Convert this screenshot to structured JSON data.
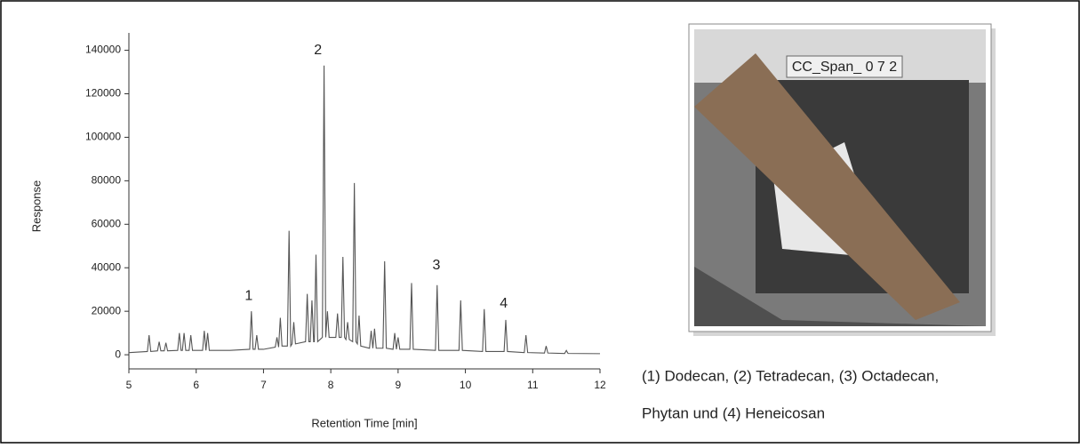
{
  "chart_data": {
    "type": "line",
    "x_label": "Retention Time [min]",
    "y_label": "Response",
    "color": "#555555",
    "xlim": [
      5,
      12
    ],
    "xticks": [
      5,
      6,
      7,
      8,
      9,
      10,
      11,
      12
    ],
    "ylim": [
      -6500,
      148000
    ],
    "yticks": [
      0,
      20000,
      40000,
      60000,
      80000,
      100000,
      120000,
      140000
    ],
    "x": [
      5.0,
      5.275,
      5.3,
      5.325,
      5.425,
      5.45,
      5.475,
      5.525,
      5.55,
      5.575,
      5.725,
      5.75,
      5.775,
      5.795,
      5.82,
      5.845,
      5.895,
      5.92,
      5.945,
      6.095,
      6.12,
      6.145,
      6.17,
      6.195,
      6.5,
      6.795,
      6.82,
      6.845,
      6.875,
      6.9,
      6.925,
      7.0,
      7.175,
      7.2,
      7.225,
      7.25,
      7.275,
      7.355,
      7.38,
      7.405,
      7.425,
      7.45,
      7.475,
      7.625,
      7.65,
      7.675,
      7.695,
      7.72,
      7.745,
      7.755,
      7.78,
      7.805,
      7.875,
      7.9,
      7.925,
      7.95,
      7.975,
      8.075,
      8.1,
      8.125,
      8.155,
      8.18,
      8.205,
      8.225,
      8.25,
      8.275,
      8.325,
      8.35,
      8.375,
      8.395,
      8.42,
      8.445,
      8.575,
      8.6,
      8.625,
      8.65,
      8.675,
      8.775,
      8.8,
      8.825,
      8.925,
      8.95,
      8.975,
      9.0,
      9.025,
      9.175,
      9.2,
      9.225,
      9.555,
      9.58,
      9.605,
      9.905,
      9.93,
      9.955,
      10.255,
      10.28,
      10.305,
      10.575,
      10.6,
      10.625,
      10.875,
      10.9,
      10.925,
      11.175,
      11.2,
      11.225,
      11.475,
      11.5,
      11.525,
      12.0
    ],
    "values": [
      1000,
      1500,
      9000,
      1500,
      1800,
      6000,
      1800,
      1800,
      5500,
      1800,
      2000,
      10000,
      2000,
      2000,
      10000,
      2000,
      2000,
      9000,
      2000,
      2000,
      11000,
      2000,
      10000,
      2000,
      2000,
      2500,
      20000,
      2500,
      2500,
      9000,
      2500,
      2500,
      3500,
      8000,
      3500,
      17000,
      4000,
      4000,
      57000,
      4000,
      5000,
      15000,
      5000,
      6000,
      28000,
      6000,
      6000,
      25000,
      6000,
      6000,
      46000,
      6000,
      8000,
      133000,
      8000,
      20000,
      8000,
      8000,
      19000,
      8000,
      8000,
      45000,
      8000,
      7000,
      15000,
      7000,
      6000,
      79000,
      6000,
      5000,
      18000,
      4000,
      3000,
      11000,
      3000,
      12000,
      3000,
      3000,
      43000,
      3000,
      2500,
      10000,
      2500,
      8000,
      2500,
      2500,
      33000,
      2500,
      2000,
      32000,
      2000,
      2000,
      25000,
      2000,
      1500,
      21000,
      1500,
      1500,
      16000,
      1500,
      1000,
      9000,
      1000,
      800,
      4000,
      800,
      600,
      2000,
      600,
      500
    ],
    "annotations": [
      {
        "label": "1",
        "x": 6.78,
        "y": 27000
      },
      {
        "label": "2",
        "x": 7.81,
        "y": 140000
      },
      {
        "label": "3",
        "x": 9.57,
        "y": 41000
      },
      {
        "label": "4",
        "x": 10.57,
        "y": 23500
      }
    ]
  },
  "photo_label": "CC_Span_ 0 7 2",
  "caption": [
    "(1) Dodecan, (2) Tetradecan, (3) Octadecan,",
    "Phytan und (4) Heneicosan"
  ]
}
